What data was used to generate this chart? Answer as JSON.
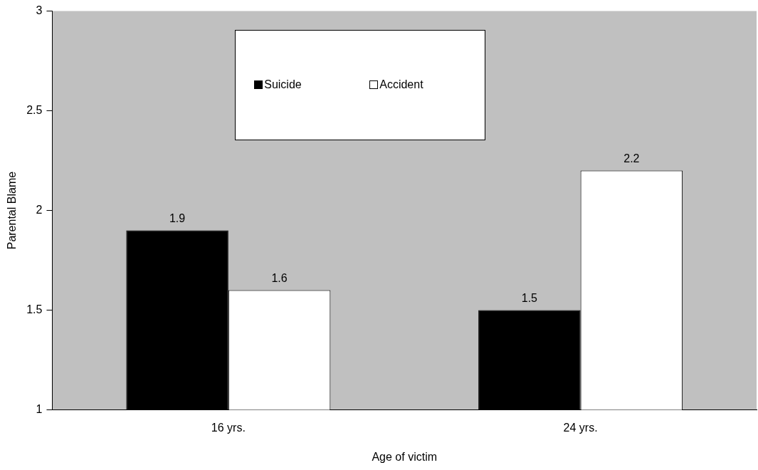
{
  "chart_data": {
    "type": "bar",
    "xlabel": "Age of victim",
    "ylabel": "Parental Blame",
    "categories": [
      "16 yrs.",
      "24 yrs."
    ],
    "series": [
      {
        "name": "Suicide",
        "color": "#000000",
        "values": [
          1.9,
          1.5
        ]
      },
      {
        "name": "Accident",
        "color": "#ffffff",
        "values": [
          1.6,
          2.2
        ]
      }
    ],
    "ylim": [
      1,
      3
    ],
    "yticks": [
      1,
      1.5,
      2,
      2.5,
      3
    ],
    "grid": false,
    "legend": "top",
    "data_labels": true
  }
}
